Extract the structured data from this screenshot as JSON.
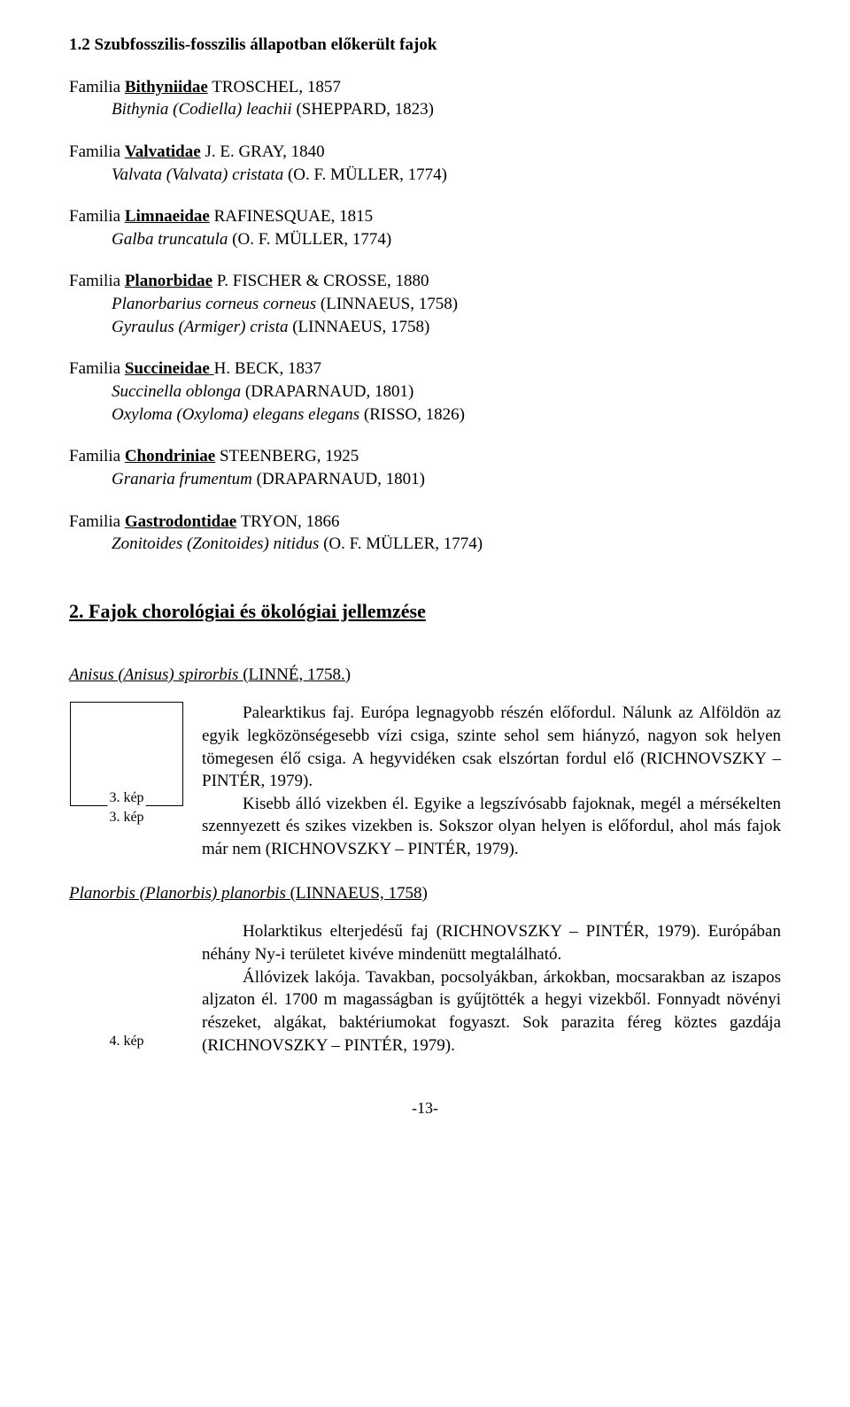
{
  "section1": {
    "heading": "1.2 Szubfosszilis-fosszilis állapotban előkerült fajok",
    "blocks": [
      {
        "family_prefix": "Familia ",
        "family_name": "Bithyniidae",
        "family_name_bold": true,
        "family_auth": " TROSCHEL, 1857",
        "species": [
          {
            "text": "Bithynia (Codiella) leachii (SHEPPARD, 1823)",
            "italic_prefix": "Bithynia (Codiella) leachii",
            "rest": " (SHEPPARD, 1823)"
          }
        ]
      },
      {
        "family_prefix": "Familia ",
        "family_name": "Valvatidae",
        "family_name_bold": true,
        "family_auth": " J. E. GRAY, 1840",
        "species": [
          {
            "italic_prefix": "Valvata (Valvata) cristata",
            "rest": " (O. F. MÜLLER, 1774)"
          }
        ]
      },
      {
        "family_prefix": "Familia ",
        "family_name": "Limnaeidae",
        "family_name_bold": true,
        "family_auth": " RAFINESQUAE, 1815",
        "species": [
          {
            "italic_prefix": "Galba truncatula",
            "rest": " (O. F. MÜLLER, 1774)"
          }
        ]
      },
      {
        "family_prefix": "Familia ",
        "family_name": "Planorbidae",
        "family_name_bold": true,
        "family_auth": " P. FISCHER & CROSSE, 1880",
        "species": [
          {
            "italic_prefix": "Planorbarius corneus corneus",
            "rest": " (LINNAEUS, 1758)"
          },
          {
            "italic_prefix": "Gyraulus (Armiger) crista",
            "rest": " (LINNAEUS, 1758)"
          }
        ]
      },
      {
        "family_prefix": "Familia ",
        "family_name": "Succineidae ",
        "family_name_bold": true,
        "family_auth": "H. BECK, 1837",
        "species": [
          {
            "italic_prefix": "Succinella oblonga",
            "rest": " (DRAPARNAUD, 1801)"
          },
          {
            "italic_prefix": "Oxyloma (Oxyloma) elegans elegans",
            "rest": " (RISSO, 1826)"
          }
        ]
      },
      {
        "family_prefix": "Familia ",
        "family_name": "Chondriniae",
        "family_name_bold": true,
        "family_auth": " STEENBERG, 1925",
        "species": [
          {
            "italic_prefix": "Granaria frumentum",
            "rest": " (DRAPARNAUD, 1801)"
          }
        ]
      },
      {
        "family_prefix": "Familia ",
        "family_name": "Gastrodontidae",
        "family_name_bold": true,
        "family_auth": " TRYON, 1866",
        "species": [
          {
            "italic_prefix": "Zonitoides (Zonitoides) nitidus",
            "rest": " (O. F. MÜLLER, 1774)"
          }
        ]
      }
    ]
  },
  "section2": {
    "heading": "2. Fajok chorológiai és ökológiai jellemzése",
    "species": [
      {
        "name_italic": "Anisus (Anisus) spirorbis",
        "name_rest": " (LINNÉ, 1758.)",
        "img_caption_inside": "3. kép",
        "img_caption_below": "3. kép",
        "has_frame": true,
        "paragraphs": [
          "Palearktikus faj. Európa legnagyobb részén előfordul. Nálunk az Alföldön az egyik legközönségesebb vízi csiga, szinte sehol sem hiányzó, nagyon sok helyen tömegesen élő csiga. A hegyvidéken csak elszórtan fordul elő (RICHNOVSZKY – PINTÉR, 1979).",
          "Kisebb álló vizekben él. Egyike a legszívósabb fajoknak, megél a mérsékelten szennyezett és szikes vizekben is. Sokszor olyan helyen is előfordul, ahol más fajok már nem (RICHNOVSZKY – PINTÉR, 1979)."
        ]
      },
      {
        "name_italic": "Planorbis (Planorbis) planorbis",
        "name_rest": " (LINNAEUS, 1758)",
        "img_caption_below": "4. kép",
        "has_frame": false,
        "paragraphs": [
          "Holarktikus elterjedésű faj (RICHNOVSZKY – PINTÉR, 1979). Európában néhány Ny-i területet kivéve mindenütt megtalálható.",
          "Állóvizek lakója. Tavakban, pocsolyákban, árkokban, mocsarakban az iszapos aljzaton él. 1700 m magasságban is gyűjtötték a hegyi vizekből. Fonnyadt növényi részeket, algákat, baktériumokat fogyaszt. Sok parazita féreg köztes gazdája (RICHNOVSZKY – PINTÉR, 1979)."
        ]
      }
    ]
  },
  "page_number": "-13-"
}
